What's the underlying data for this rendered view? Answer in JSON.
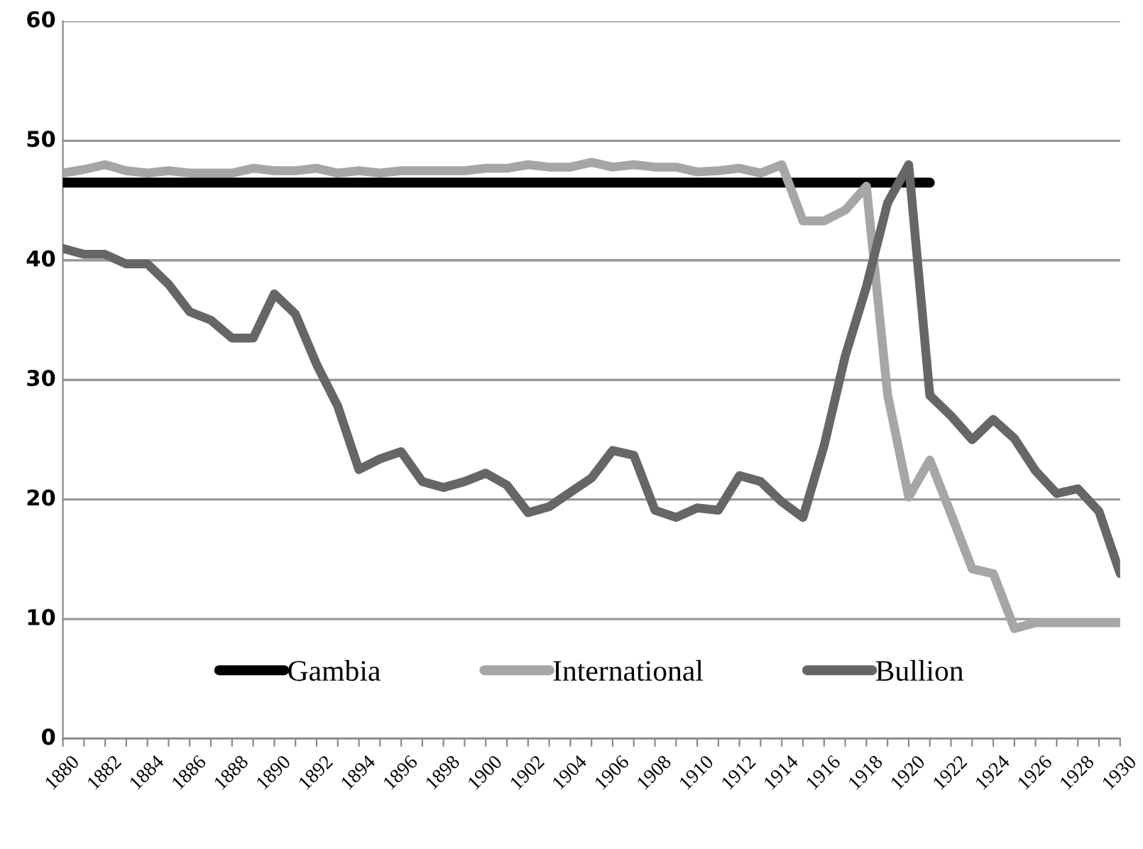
{
  "chart_data": {
    "type": "line",
    "xlim": [
      1880,
      1930
    ],
    "xticks": [
      1880,
      {
        "value": 1881,
        "label": null
      },
      1882,
      {
        "value": 1883,
        "label": null
      },
      1884,
      {
        "value": 1885,
        "label": null
      },
      1886,
      {
        "value": 1887,
        "label": null
      },
      1888,
      {
        "value": 1889,
        "label": null
      },
      1890,
      {
        "value": 1891,
        "label": null
      },
      1892,
      {
        "value": 1893,
        "label": null
      },
      1894,
      {
        "value": 1895,
        "label": null
      },
      1896,
      {
        "value": 1897,
        "label": null
      },
      1898,
      {
        "value": 1899,
        "label": null
      },
      1900,
      {
        "value": 1901,
        "label": null
      },
      1902,
      {
        "value": 1903,
        "label": null
      },
      1904,
      {
        "value": 1905,
        "label": null
      },
      1906,
      {
        "value": 1907,
        "label": null
      },
      1908,
      {
        "value": 1909,
        "label": null
      },
      1910,
      {
        "value": 1911,
        "label": null
      },
      1912,
      {
        "value": 1913,
        "label": null
      },
      1914,
      {
        "value": 1915,
        "label": null
      },
      1916,
      {
        "value": 1917,
        "label": null
      },
      1918,
      {
        "value": 1919,
        "label": null
      },
      1920,
      {
        "value": 1921,
        "label": null
      },
      1922,
      {
        "value": 1923,
        "label": null
      },
      1924,
      {
        "value": 1925,
        "label": null
      },
      1926,
      {
        "value": 1927,
        "label": null
      },
      1928,
      {
        "value": 1929,
        "label": null
      },
      1930
    ],
    "ylim": [
      0,
      60
    ],
    "yticks": [
      0,
      10,
      20,
      30,
      40,
      50,
      60
    ],
    "grid": "y",
    "legend": "bottom",
    "marker": "none",
    "line_style": "solid",
    "series": [
      {
        "name": "Gambia",
        "color": "#000000",
        "x": [
          1880,
          1921
        ],
        "values": [
          46.5,
          46.5
        ]
      },
      {
        "name": "International",
        "color": "#a6a6a6",
        "x": [
          1880,
          1881,
          1882,
          1883,
          1884,
          1885,
          1886,
          1887,
          1888,
          1889,
          1890,
          1891,
          1892,
          1893,
          1894,
          1895,
          1896,
          1897,
          1898,
          1899,
          1900,
          1901,
          1902,
          1903,
          1904,
          1905,
          1906,
          1907,
          1908,
          1909,
          1910,
          1911,
          1912,
          1913,
          1914,
          1915,
          1916,
          1917,
          1918,
          1919,
          1920,
          1921,
          1922,
          1923,
          1924,
          1925,
          1926,
          1927,
          1928,
          1929,
          1930
        ],
        "values": [
          47.3,
          47.6,
          48,
          47.5,
          47.3,
          47.5,
          47.3,
          47.3,
          47.3,
          47.7,
          47.5,
          47.5,
          47.7,
          47.3,
          47.5,
          47.3,
          47.5,
          47.5,
          47.5,
          47.5,
          47.7,
          47.7,
          48,
          47.8,
          47.8,
          48.2,
          47.8,
          48,
          47.8,
          47.8,
          47.4,
          47.5,
          47.7,
          47.3,
          48,
          43.3,
          43.3,
          44.2,
          46.2,
          28.8,
          20.2,
          23.3,
          18.8,
          14.2,
          13.8,
          9.2,
          9.7,
          9.7,
          9.7,
          9.7,
          9.7
        ]
      },
      {
        "name": "Bullion",
        "color": "#666666",
        "x": [
          1880,
          1881,
          1882,
          1883,
          1884,
          1885,
          1886,
          1887,
          1888,
          1889,
          1890,
          1891,
          1892,
          1893,
          1894,
          1895,
          1896,
          1897,
          1898,
          1899,
          1900,
          1901,
          1902,
          1903,
          1904,
          1905,
          1906,
          1907,
          1908,
          1909,
          1910,
          1911,
          1912,
          1913,
          1914,
          1915,
          1916,
          1917,
          1918,
          1919,
          1920,
          1921,
          1922,
          1923,
          1924,
          1925,
          1926,
          1927,
          1928,
          1929,
          1930
        ],
        "values": [
          41,
          40.5,
          40.5,
          39.7,
          39.7,
          38,
          35.7,
          35,
          33.5,
          33.5,
          37.2,
          35.5,
          31.3,
          27.8,
          22.5,
          23.4,
          24,
          21.5,
          21,
          21.5,
          22.2,
          21.2,
          18.9,
          19.4,
          20.6,
          21.8,
          24.1,
          23.7,
          19.1,
          18.5,
          19.3,
          19.1,
          22,
          21.5,
          19.8,
          18.5,
          24.5,
          32,
          37.8,
          44.8,
          48,
          28.7,
          27,
          25,
          26.7,
          25.1,
          22.4,
          20.5,
          20.9,
          19,
          13.8
        ]
      }
    ]
  }
}
